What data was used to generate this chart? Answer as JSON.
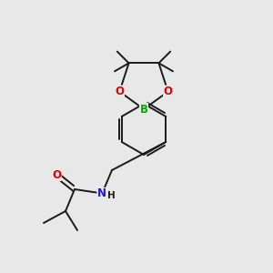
{
  "background_color": "#e8e8e8",
  "bond_color": "#1a1a1a",
  "atom_colors": {
    "O": "#e00000",
    "B": "#00aa00",
    "N": "#1a1acc",
    "C": "#1a1a1a"
  },
  "figsize": [
    3.0,
    3.0
  ],
  "dpi": 100,
  "bond_lw": 1.4,
  "font_size_atom": 8.5,
  "font_size_me": 7.0
}
